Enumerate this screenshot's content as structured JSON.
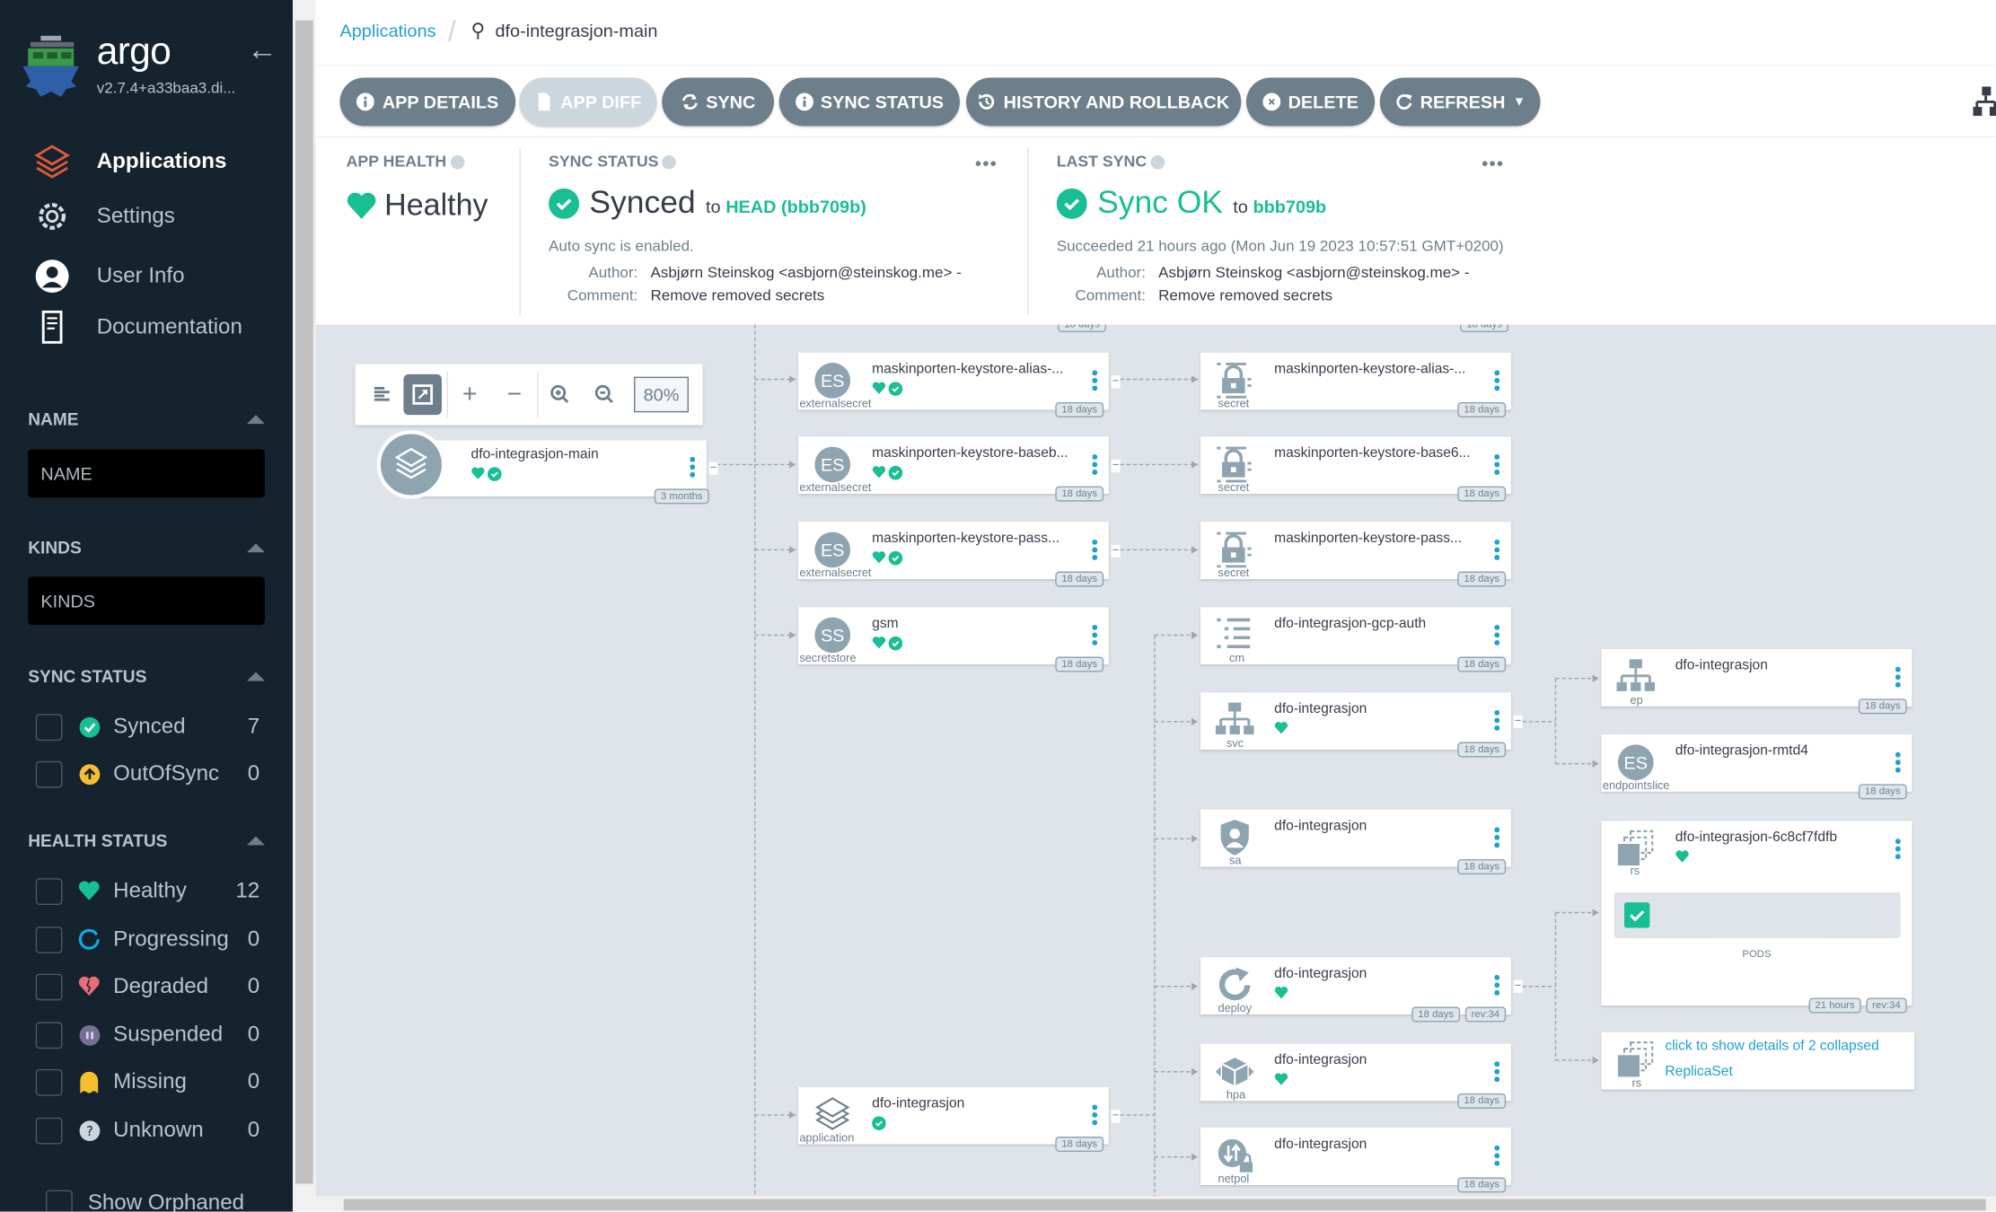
{
  "sidebar": {
    "logo_text": "argo",
    "version": "v2.7.4+a33baa3.di...",
    "nav": [
      {
        "label": "Applications",
        "icon": "layers-icon",
        "active": true
      },
      {
        "label": "Settings",
        "icon": "gear-icon"
      },
      {
        "label": "User Info",
        "icon": "user-circle-icon"
      },
      {
        "label": "Documentation",
        "icon": "book-icon"
      }
    ],
    "name_filter": {
      "title": "NAME",
      "placeholder": "NAME"
    },
    "kinds_filter": {
      "title": "KINDS",
      "placeholder": "KINDS"
    },
    "sync_status": {
      "title": "SYNC STATUS",
      "items": [
        {
          "label": "Synced",
          "count": "7",
          "icon": "check-circle-icon"
        },
        {
          "label": "OutOfSync",
          "count": "0",
          "icon": "arrow-up-circle-icon"
        }
      ]
    },
    "health_status": {
      "title": "HEALTH STATUS",
      "items": [
        {
          "label": "Healthy",
          "count": "12",
          "icon": "heart-icon"
        },
        {
          "label": "Progressing",
          "count": "0",
          "icon": "spinner-icon"
        },
        {
          "label": "Degraded",
          "count": "0",
          "icon": "broken-heart-icon"
        },
        {
          "label": "Suspended",
          "count": "0",
          "icon": "pause-circle-icon"
        },
        {
          "label": "Missing",
          "count": "0",
          "icon": "ghost-icon"
        },
        {
          "label": "Unknown",
          "count": "0",
          "icon": "question-circle-icon"
        }
      ]
    },
    "show_orphaned": "Show Orphaned"
  },
  "breadcrumb": {
    "root": "Applications",
    "current": "dfo-integrasjon-main"
  },
  "toolbar": {
    "buttons": [
      {
        "label": "APP DETAILS",
        "icon": "info-icon"
      },
      {
        "label": "APP DIFF",
        "icon": "file-diff-icon",
        "disabled": true
      },
      {
        "label": "SYNC",
        "icon": "sync-icon"
      },
      {
        "label": "SYNC STATUS",
        "icon": "info-icon"
      },
      {
        "label": "HISTORY AND ROLLBACK",
        "icon": "history-icon"
      },
      {
        "label": "DELETE",
        "icon": "times-circle-icon"
      },
      {
        "label": "REFRESH",
        "icon": "redo-icon"
      }
    ]
  },
  "summary": {
    "app_health": {
      "title": "APP HEALTH",
      "value": "Healthy"
    },
    "sync_status": {
      "title": "SYNC STATUS",
      "status": "Synced",
      "to": "to",
      "revision": "HEAD (bbb709b)",
      "auto_sync": "Auto sync is enabled.",
      "author_label": "Author:",
      "author": "Asbjørn Steinskog <asbjorn@steinskog.me> -",
      "comment_label": "Comment:",
      "comment": "Remove removed secrets"
    },
    "last_sync": {
      "title": "LAST SYNC",
      "status": "Sync OK",
      "to": "to",
      "revision": "bbb709b",
      "succeeded": "Succeeded 21 hours ago (Mon Jun 19 2023 10:57:51 GMT+0200)",
      "author_label": "Author:",
      "author": "Asbjørn Steinskog <asbjorn@steinskog.me> -",
      "comment_label": "Comment:",
      "comment": "Remove removed secrets"
    }
  },
  "graph": {
    "zoom": "80%",
    "root": {
      "name": "dfo-integrasjon-main",
      "age": "3 months",
      "healthy": true,
      "synced": true
    },
    "nodes": [
      {
        "name": "maskinporten-keystore-alias-...",
        "kind": "externalsecret",
        "abbr": "ES",
        "age": "18 days",
        "healthy": true,
        "synced": true
      },
      {
        "name": "maskinporten-keystore-baseb...",
        "kind": "externalsecret",
        "abbr": "ES",
        "age": "18 days",
        "healthy": true,
        "synced": true
      },
      {
        "name": "maskinporten-keystore-pass...",
        "kind": "externalsecret",
        "abbr": "ES",
        "age": "18 days",
        "healthy": true,
        "synced": true
      },
      {
        "name": "gsm",
        "kind": "secretstore",
        "abbr": "SS",
        "age": "18 days",
        "healthy": true,
        "synced": true
      },
      {
        "name": "dfo-integrasjon",
        "kind": "application",
        "icon": "layers-icon",
        "age": "18 days",
        "synced": true
      },
      {
        "name": "maskinporten-keystore-alias-...",
        "kind": "secret",
        "icon": "lock-icon",
        "age": "18 days"
      },
      {
        "name": "maskinporten-keystore-base6...",
        "kind": "secret",
        "icon": "lock-icon",
        "age": "18 days"
      },
      {
        "name": "maskinporten-keystore-pass...",
        "kind": "secret",
        "icon": "lock-icon",
        "age": "18 days"
      },
      {
        "name": "dfo-integrasjon-gcp-auth",
        "kind": "cm",
        "icon": "list-icon",
        "age": "18 days"
      },
      {
        "name": "dfo-integrasjon",
        "kind": "svc",
        "icon": "sitemap-icon",
        "age": "18 days",
        "healthy": true
      },
      {
        "name": "dfo-integrasjon",
        "kind": "sa",
        "icon": "user-shield-icon",
        "age": "18 days"
      },
      {
        "name": "dfo-integrasjon",
        "kind": "deploy",
        "icon": "redo-icon",
        "age": "18 days",
        "rev": "rev:34",
        "healthy": true
      },
      {
        "name": "dfo-integrasjon",
        "kind": "hpa",
        "icon": "cube-icon",
        "age": "18 days",
        "healthy": true
      },
      {
        "name": "dfo-integrasjon",
        "kind": "netpol",
        "icon": "globe-lock-icon",
        "age": "18 days"
      },
      {
        "name": "dfo-integrasjon",
        "kind": "ep",
        "icon": "sitemap-icon",
        "age": "18 days"
      },
      {
        "name": "dfo-integrasjon-rmtd4",
        "kind": "endpointslice",
        "abbr": "ES",
        "age": "18 days"
      },
      {
        "name": "dfo-integrasjon-6c8cf7fdfb",
        "kind": "rs",
        "icon": "clone-icon",
        "age": "21 hours",
        "rev": "rev:34",
        "healthy": true,
        "pods_label": "PODS",
        "pods": [
          {
            "status": "healthy"
          }
        ]
      }
    ],
    "collapsed": {
      "kind": "rs",
      "line1": "click to show details of 2 collapsed",
      "line2": "ReplicaSet"
    }
  },
  "colors": {
    "sidebar": "#14232e",
    "healthy": "#18be94",
    "button": "#6d7f8b",
    "link": "#1fa0d1",
    "graph_bg": "#dee4ea"
  }
}
